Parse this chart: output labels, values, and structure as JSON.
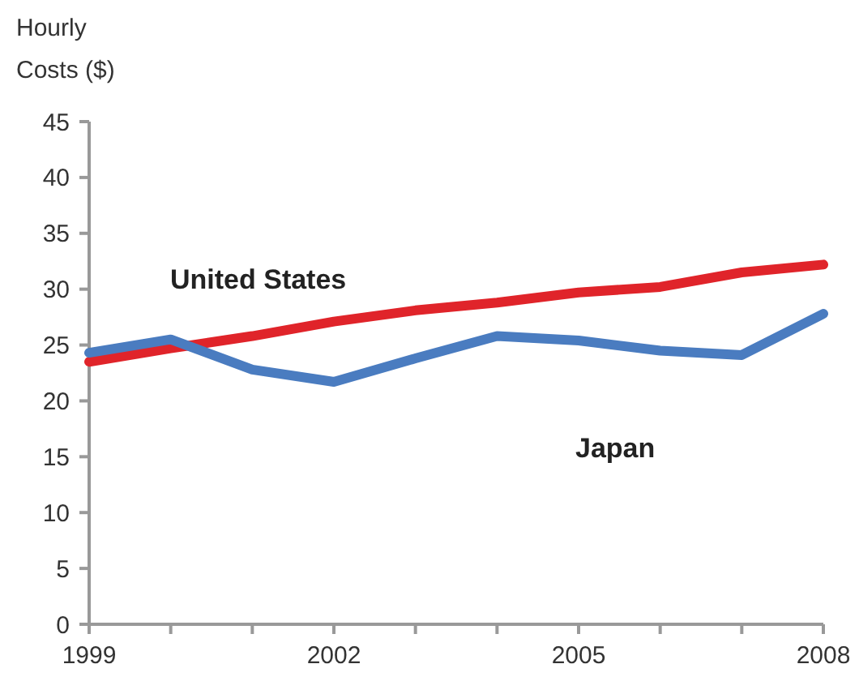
{
  "chart_data": {
    "type": "line",
    "ylabel": "Hourly Costs ($)",
    "x": [
      1999,
      2000,
      2001,
      2002,
      2003,
      2004,
      2005,
      2006,
      2007,
      2008
    ],
    "xlim": [
      1999,
      2008
    ],
    "xticks": [
      1999,
      {
        "value": 2000,
        "label": null
      },
      {
        "value": 2001,
        "label": null
      },
      2002,
      {
        "value": 2003,
        "label": null
      },
      {
        "value": 2004,
        "label": null
      },
      2005,
      {
        "value": 2006,
        "label": null
      },
      {
        "value": 2007,
        "label": null
      },
      2008
    ],
    "ylim": [
      0,
      45
    ],
    "yticks": [
      0,
      5,
      10,
      15,
      20,
      25,
      30,
      35,
      40,
      45
    ],
    "grid": false,
    "marker": "none",
    "line_style": "solid",
    "series": [
      {
        "name": "United States",
        "color": "#e0242a",
        "values": [
          23.5,
          24.7,
          25.8,
          27.1,
          28.1,
          28.8,
          29.7,
          30.2,
          31.5,
          32.2
        ]
      },
      {
        "name": "Japan",
        "color": "#4a7cc0",
        "values": [
          24.3,
          25.5,
          22.8,
          21.7,
          23.8,
          25.8,
          25.4,
          24.5,
          24.1,
          27.8
        ]
      }
    ]
  }
}
